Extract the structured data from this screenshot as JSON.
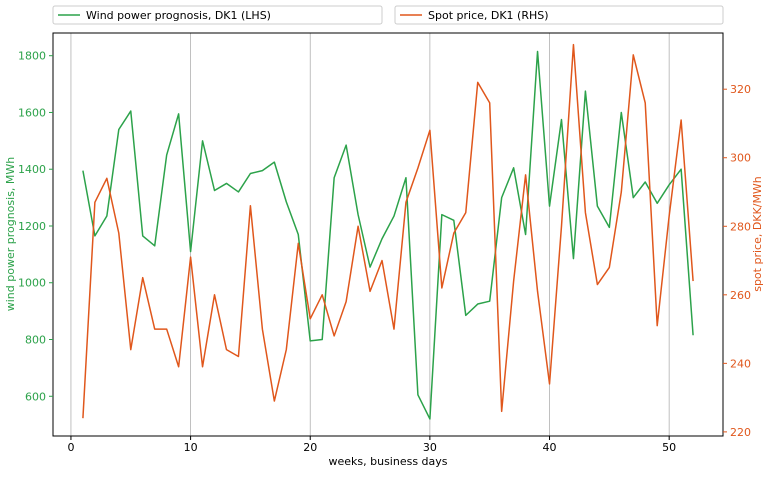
{
  "chart_data": {
    "type": "line",
    "legend_placement": "top, above plot",
    "grid": "vertical gridlines only",
    "xlabel": "weeks, business days",
    "ylabel_left": "wind power prognosis, MWh",
    "ylabel_right": "spot price, DKK/MWh",
    "xlim": [
      -1.5,
      54.5
    ],
    "ylim_left": [
      460,
      1880
    ],
    "ylim_right": [
      218.8,
      336.4
    ],
    "x_ticks": [
      0,
      10,
      20,
      30,
      40,
      50
    ],
    "y_left_ticks": [
      600,
      800,
      1000,
      1200,
      1400,
      1600,
      1800
    ],
    "y_right_ticks": [
      220,
      240,
      260,
      280,
      300,
      320
    ],
    "x": [
      1,
      2,
      3,
      4,
      5,
      6,
      7,
      8,
      9,
      10,
      11,
      12,
      13,
      14,
      15,
      16,
      17,
      18,
      19,
      20,
      21,
      22,
      23,
      24,
      25,
      26,
      27,
      28,
      29,
      30,
      31,
      32,
      33,
      34,
      35,
      36,
      37,
      38,
      39,
      40,
      41,
      42,
      43,
      44,
      45,
      46,
      47,
      48,
      49,
      50,
      51,
      52
    ],
    "series": [
      {
        "name": "Wind power prognosis, DK1 (LHS)",
        "axis": "left",
        "color": "#2ca24a",
        "values": [
          1395,
          1165,
          1235,
          1540,
          1605,
          1165,
          1130,
          1450,
          1595,
          1110,
          1500,
          1325,
          1350,
          1320,
          1385,
          1395,
          1425,
          1285,
          1170,
          795,
          800,
          1370,
          1485,
          1240,
          1055,
          1155,
          1235,
          1370,
          605,
          520,
          1240,
          1220,
          885,
          925,
          935,
          1300,
          1405,
          1170,
          1815,
          1270,
          1575,
          1085,
          1675,
          1270,
          1195,
          1600,
          1300,
          1355,
          1280,
          1345,
          1400,
          815
        ]
      },
      {
        "name": "Spot price, DK1 (RHS)",
        "axis": "right",
        "color": "#e0571c",
        "values": [
          224,
          287,
          294,
          278,
          244,
          265,
          250,
          250,
          239,
          271,
          239,
          260,
          244,
          242,
          286,
          250,
          229,
          244,
          275,
          253,
          260,
          248,
          258,
          280,
          261,
          270,
          250,
          287,
          297,
          308,
          262,
          278,
          284,
          322,
          316,
          226,
          264,
          295,
          261,
          234,
          280,
          333,
          284,
          263,
          268,
          290,
          330,
          316,
          251,
          283,
          311,
          264
        ]
      }
    ]
  }
}
